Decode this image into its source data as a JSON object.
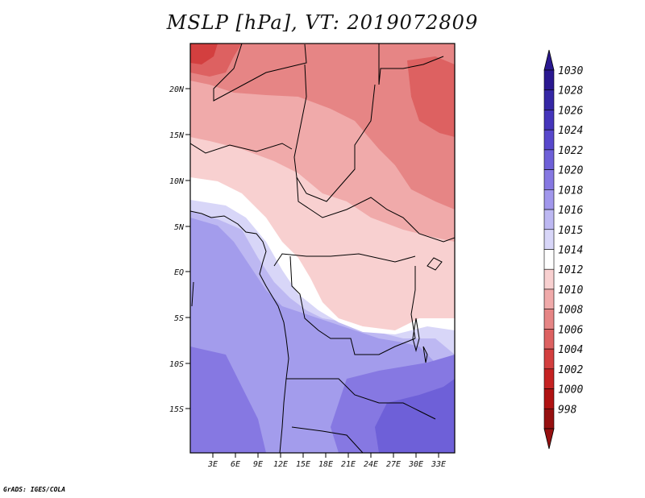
{
  "title": "MSLP [hPa], VT: 2019072809",
  "credit": "GrADS: IGES/COLA",
  "lat_labels": [
    "20N",
    "15N",
    "10N",
    "5N",
    "EQ",
    "5S",
    "10S",
    "15S"
  ],
  "lon_labels": [
    "3E",
    "6E",
    "9E",
    "12E",
    "15E",
    "18E",
    "21E",
    "24E",
    "27E",
    "30E",
    "33E"
  ],
  "colorbar": {
    "labels": [
      "1030",
      "1028",
      "1026",
      "1024",
      "1022",
      "1020",
      "1018",
      "1016",
      "1015",
      "1014",
      "1012",
      "1010",
      "1008",
      "1006",
      "1004",
      "1002",
      "1000",
      "998"
    ],
    "colors": [
      "#2a1890",
      "#3527a5",
      "#4535bb",
      "#5848cc",
      "#6e60d8",
      "#8678e2",
      "#a197ec",
      "#bdb8f2",
      "#d8d6f8",
      "#ffffff",
      "#f8d0d0",
      "#f0aaaa",
      "#e68585",
      "#dd6161",
      "#d33f3f",
      "#c52222",
      "#b01212",
      "#961010"
    ]
  },
  "chart_data": {
    "type": "heatmap",
    "variable": "MSLP [hPa]",
    "valid_time": "2019072809",
    "lat_ticks": [
      "20N",
      "15N",
      "10N",
      "5N",
      "EQ",
      "5S",
      "10S",
      "15S"
    ],
    "lon_ticks": [
      "3E",
      "6E",
      "9E",
      "12E",
      "15E",
      "18E",
      "21E",
      "24E",
      "27E",
      "30E",
      "33E"
    ],
    "levels": [
      998,
      1000,
      1002,
      1004,
      1006,
      1008,
      1010,
      1012,
      1014,
      1015,
      1016,
      1018,
      1020,
      1022,
      1024,
      1026,
      1028,
      1030
    ]
  }
}
